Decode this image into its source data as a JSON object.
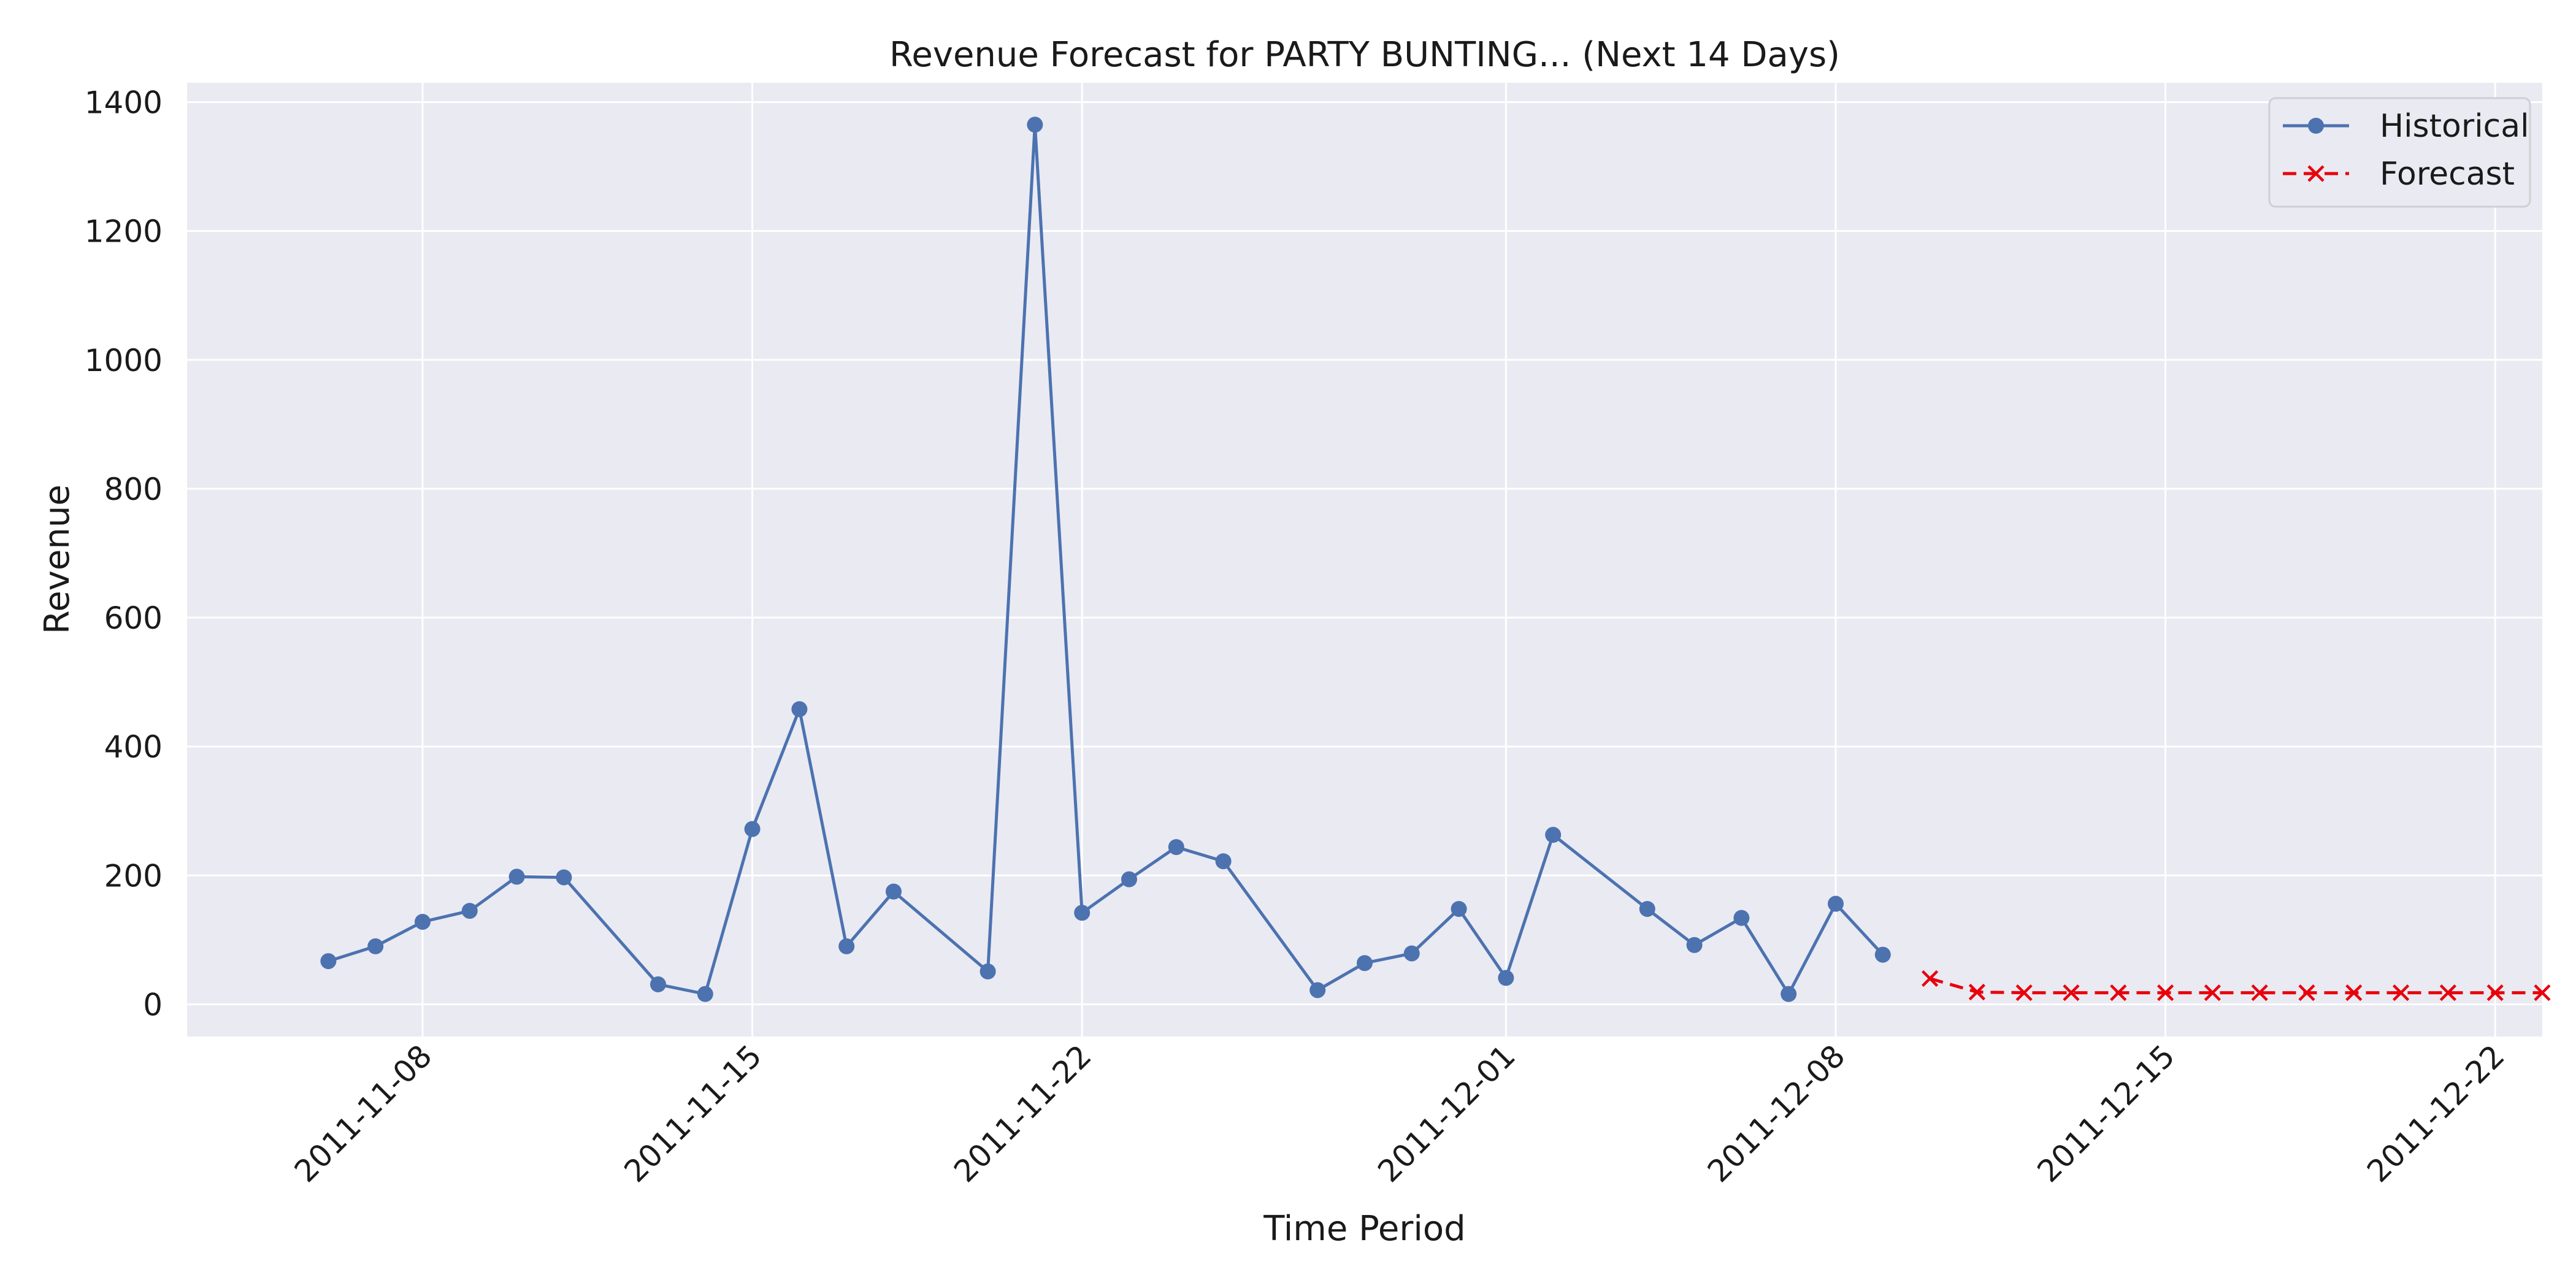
{
  "chart_data": {
    "type": "line",
    "title": "Revenue Forecast for PARTY BUNTING... (Next 14 Days)",
    "xlabel": "Time Period",
    "ylabel": "Revenue",
    "ylim": [
      -50,
      1430
    ],
    "xlim": [
      "2011-11-03",
      "2011-12-23"
    ],
    "y_ticks": [
      0,
      200,
      400,
      600,
      800,
      1000,
      1200,
      1400
    ],
    "x_ticks": [
      "2011-11-08",
      "2011-11-15",
      "2011-11-22",
      "2011-12-01",
      "2011-12-08",
      "2011-12-15",
      "2011-12-22"
    ],
    "grid": true,
    "legend_position": "top-right",
    "series": [
      {
        "name": "Historical",
        "color": "#4c72b0",
        "style": "solid",
        "marker": "circle",
        "points": [
          [
            "2011-11-06",
            67
          ],
          [
            "2011-11-07",
            90
          ],
          [
            "2011-11-08",
            128
          ],
          [
            "2011-11-09",
            145
          ],
          [
            "2011-11-10",
            198
          ],
          [
            "2011-11-11",
            197
          ],
          [
            "2011-11-13",
            31
          ],
          [
            "2011-11-14",
            16
          ],
          [
            "2011-11-15",
            272
          ],
          [
            "2011-11-16",
            458
          ],
          [
            "2011-11-17",
            90
          ],
          [
            "2011-11-18",
            175
          ],
          [
            "2011-11-20",
            51
          ],
          [
            "2011-11-21",
            1365
          ],
          [
            "2011-11-22",
            142
          ],
          [
            "2011-11-23",
            194
          ],
          [
            "2011-11-24",
            244
          ],
          [
            "2011-11-25",
            222
          ],
          [
            "2011-11-27",
            22
          ],
          [
            "2011-11-28",
            64
          ],
          [
            "2011-11-29",
            79
          ],
          [
            "2011-11-30",
            148
          ],
          [
            "2011-12-01",
            41
          ],
          [
            "2011-12-02",
            263
          ],
          [
            "2011-12-04",
            148
          ],
          [
            "2011-12-05",
            92
          ],
          [
            "2011-12-06",
            134
          ],
          [
            "2011-12-07",
            16
          ],
          [
            "2011-12-08",
            156
          ],
          [
            "2011-12-09",
            77
          ]
        ]
      },
      {
        "name": "Forecast",
        "color": "#e8000b",
        "style": "dashed",
        "marker": "x",
        "points": [
          [
            "2011-12-10",
            40
          ],
          [
            "2011-12-11",
            19
          ],
          [
            "2011-12-12",
            18
          ],
          [
            "2011-12-13",
            18
          ],
          [
            "2011-12-14",
            18
          ],
          [
            "2011-12-15",
            18
          ],
          [
            "2011-12-16",
            18
          ],
          [
            "2011-12-17",
            18
          ],
          [
            "2011-12-18",
            18
          ],
          [
            "2011-12-19",
            18
          ],
          [
            "2011-12-20",
            18
          ],
          [
            "2011-12-21",
            18
          ],
          [
            "2011-12-22",
            18
          ],
          [
            "2011-12-23",
            18
          ]
        ]
      }
    ]
  }
}
